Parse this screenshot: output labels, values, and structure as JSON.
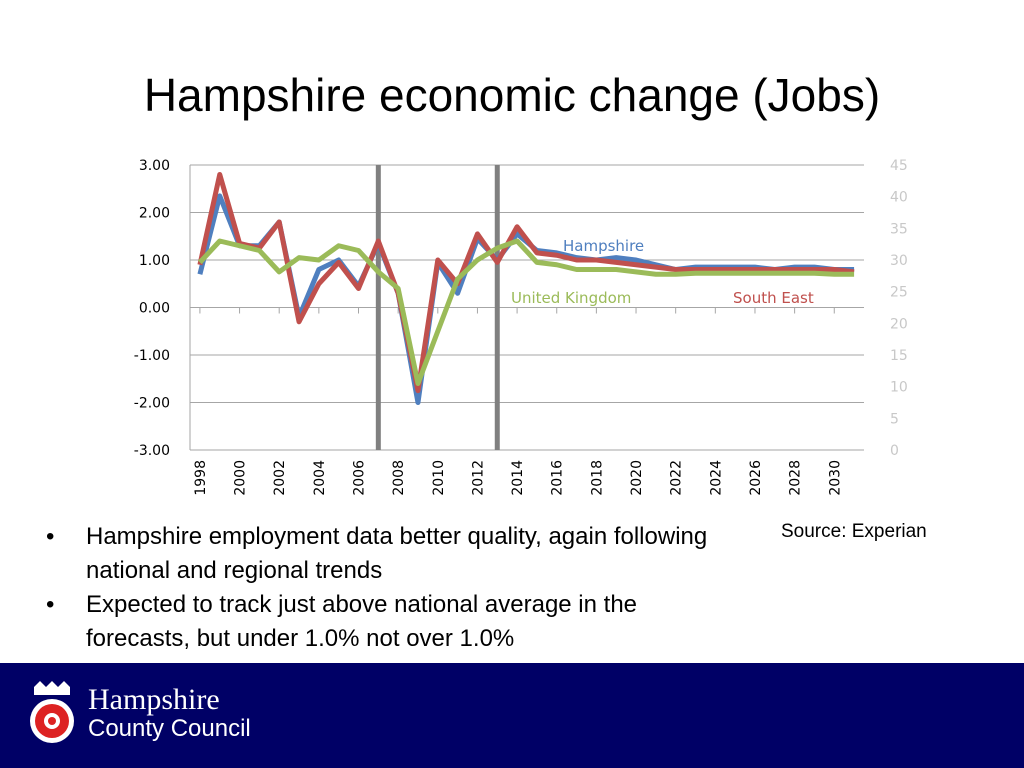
{
  "chart_data": {
    "type": "line",
    "title": "Hampshire economic change (Jobs)",
    "x": [
      1998,
      1999,
      2000,
      2001,
      2002,
      2003,
      2004,
      2005,
      2006,
      2007,
      2008,
      2009,
      2010,
      2011,
      2012,
      2013,
      2014,
      2015,
      2016,
      2017,
      2018,
      2019,
      2020,
      2021,
      2022,
      2023,
      2024,
      2025,
      2026,
      2027,
      2028,
      2029,
      2030,
      2031
    ],
    "xlim": [
      1997.5,
      2031.5
    ],
    "xticks": [
      1998,
      2000,
      2002,
      2004,
      2006,
      2008,
      2010,
      2012,
      2014,
      2016,
      2018,
      2020,
      2022,
      2024,
      2026,
      2028,
      2030
    ],
    "ylim": [
      -3,
      3
    ],
    "yticks": [
      {
        "value": -3,
        "label": "-3.00"
      },
      {
        "value": -2,
        "label": "-2.00"
      },
      {
        "value": -1,
        "label": "-1.00"
      },
      {
        "value": 0,
        "label": "0.00"
      },
      {
        "value": 1,
        "label": "1.00"
      },
      {
        "value": 2,
        "label": "2.00"
      },
      {
        "value": 3,
        "label": "3.00"
      }
    ],
    "y2lim": [
      0,
      45
    ],
    "y2ticks": [
      0,
      5,
      10,
      15,
      20,
      25,
      30,
      35,
      40,
      45
    ],
    "grid": true,
    "vlines": [
      2007,
      2013
    ],
    "series": [
      {
        "name": "Hampshire",
        "color": "#4f7fbf",
        "values": [
          0.7,
          2.35,
          1.3,
          1.3,
          1.8,
          -0.2,
          0.8,
          1.0,
          0.45,
          1.35,
          0.3,
          -2.0,
          0.95,
          0.3,
          1.45,
          1.0,
          1.55,
          1.2,
          1.15,
          1.05,
          1.0,
          1.05,
          1.0,
          0.9,
          0.8,
          0.85,
          0.85,
          0.85,
          0.85,
          0.8,
          0.85,
          0.85,
          0.8,
          0.8
        ]
      },
      {
        "name": "South East",
        "color": "#c0504d",
        "values": [
          0.9,
          2.8,
          1.35,
          1.25,
          1.8,
          -0.3,
          0.5,
          0.95,
          0.4,
          1.4,
          0.3,
          -1.75,
          1.0,
          0.5,
          1.55,
          0.95,
          1.7,
          1.15,
          1.1,
          1.0,
          1.0,
          0.95,
          0.9,
          0.85,
          0.8,
          0.8,
          0.8,
          0.8,
          0.8,
          0.8,
          0.8,
          0.8,
          0.8,
          0.75
        ]
      },
      {
        "name": "United Kingdom",
        "color": "#9bbb59",
        "values": [
          0.95,
          1.4,
          1.3,
          1.2,
          0.75,
          1.05,
          1.0,
          1.3,
          1.2,
          0.75,
          0.4,
          -1.6,
          -0.5,
          0.6,
          1.0,
          1.25,
          1.4,
          0.95,
          0.9,
          0.8,
          0.8,
          0.8,
          0.75,
          0.7,
          0.7,
          0.72,
          0.72,
          0.72,
          0.72,
          0.72,
          0.72,
          0.72,
          0.7,
          0.7
        ]
      }
    ]
  },
  "slide": {
    "bullets": [
      "Hampshire employment data better quality, again following national and regional trends",
      "Expected to track just above national average in the forecasts, but under 1.0% not over 1.0%"
    ],
    "source": "Source: Experian",
    "logo": {
      "name": "Hampshire",
      "subtitle": "County Council"
    }
  }
}
